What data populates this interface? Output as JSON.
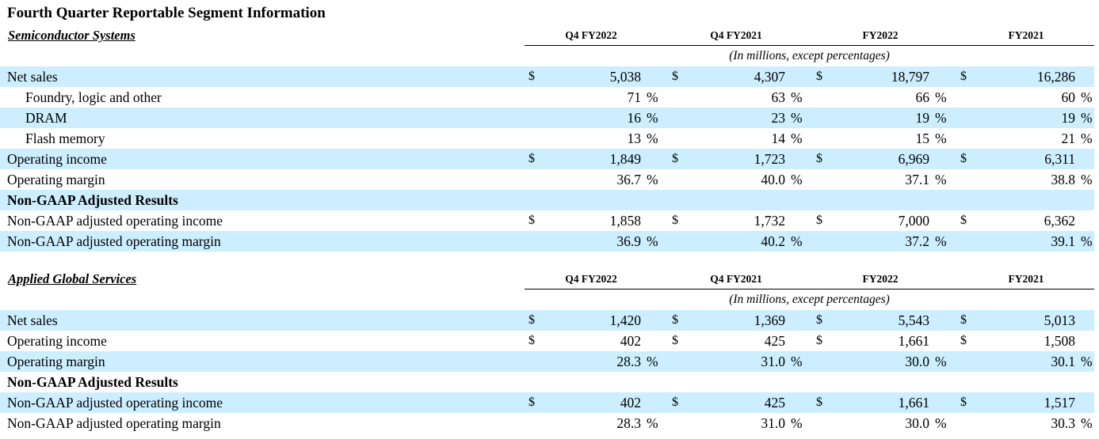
{
  "title": "Fourth Quarter Reportable Segment Information",
  "columns": [
    "Q4 FY2022",
    "Q4 FY2021",
    "FY2022",
    "FY2021"
  ],
  "units_note": "(In millions, except percentages)",
  "currency_symbol": "$",
  "percent_symbol": "%",
  "sections": [
    {
      "name": "Semiconductor Systems",
      "rows": [
        {
          "label": "Net sales",
          "currency": true,
          "values": [
            "5,038",
            "4,307",
            "18,797",
            "16,286"
          ]
        },
        {
          "label": "Foundry, logic and other",
          "indent": true,
          "percent": true,
          "values": [
            "71",
            "63",
            "66",
            "60"
          ]
        },
        {
          "label": "DRAM",
          "indent": true,
          "percent": true,
          "values": [
            "16",
            "23",
            "19",
            "19"
          ]
        },
        {
          "label": "Flash memory",
          "indent": true,
          "percent": true,
          "values": [
            "13",
            "14",
            "15",
            "21"
          ]
        },
        {
          "label": "Operating income",
          "currency": true,
          "values": [
            "1,849",
            "1,723",
            "6,969",
            "6,311"
          ]
        },
        {
          "label": "Operating margin",
          "percent": true,
          "values": [
            "36.7",
            "40.0",
            "37.1",
            "38.8"
          ]
        },
        {
          "label": "Non-GAAP Adjusted Results",
          "heading": true
        },
        {
          "label": "Non-GAAP adjusted operating income",
          "currency": true,
          "values": [
            "1,858",
            "1,732",
            "7,000",
            "6,362"
          ]
        },
        {
          "label": "Non-GAAP adjusted operating margin",
          "percent": true,
          "values": [
            "36.9",
            "40.2",
            "37.2",
            "39.1"
          ]
        }
      ]
    },
    {
      "name": "Applied Global Services",
      "rows": [
        {
          "label": "Net sales",
          "currency": true,
          "values": [
            "1,420",
            "1,369",
            "5,543",
            "5,013"
          ]
        },
        {
          "label": "Operating income",
          "currency": true,
          "values": [
            "402",
            "425",
            "1,661",
            "1,508"
          ]
        },
        {
          "label": "Operating margin",
          "percent": true,
          "values": [
            "28.3",
            "31.0",
            "30.0",
            "30.1"
          ]
        },
        {
          "label": "Non-GAAP Adjusted Results",
          "heading": true
        },
        {
          "label": "Non-GAAP adjusted operating income",
          "currency": true,
          "values": [
            "402",
            "425",
            "1,661",
            "1,517"
          ]
        },
        {
          "label": "Non-GAAP adjusted operating margin",
          "percent": true,
          "values": [
            "28.3",
            "31.0",
            "30.0",
            "30.3"
          ]
        }
      ]
    }
  ]
}
